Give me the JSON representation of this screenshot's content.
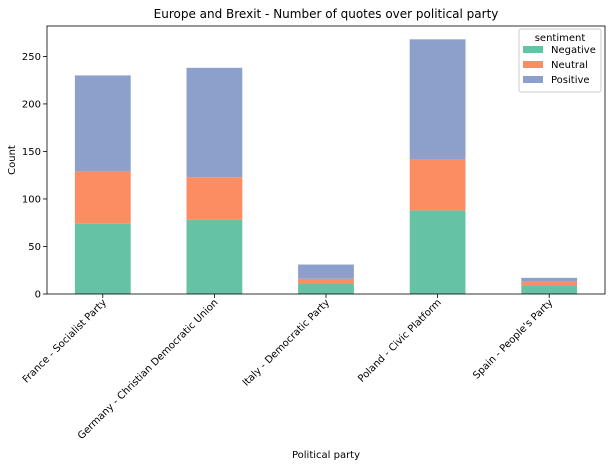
{
  "chart_data": {
    "type": "bar",
    "stacked": true,
    "title": "Europe and Brexit - Number of quotes over political party",
    "xlabel": "Political party",
    "ylabel": "Count",
    "categories": [
      "France - Socialist Party",
      "Germany - Christian Democratic Union",
      "Italy - Democratic Party",
      "Poland - Civic Platform",
      "Spain - People's Party"
    ],
    "series": [
      {
        "name": "Negative",
        "color": "#66c2a5",
        "values": [
          74,
          78,
          11,
          88,
          9
        ]
      },
      {
        "name": "Neutral",
        "color": "#fc8d62",
        "values": [
          55,
          45,
          5,
          54,
          4
        ]
      },
      {
        "name": "Positive",
        "color": "#8da0cb",
        "values": [
          101,
          115,
          15,
          126,
          4
        ]
      }
    ],
    "ylim": [
      0,
      282
    ],
    "yticks": [
      0,
      50,
      100,
      150,
      200,
      250
    ],
    "legend": {
      "title": "sentiment",
      "placement": "top-right"
    },
    "grid": false
  }
}
